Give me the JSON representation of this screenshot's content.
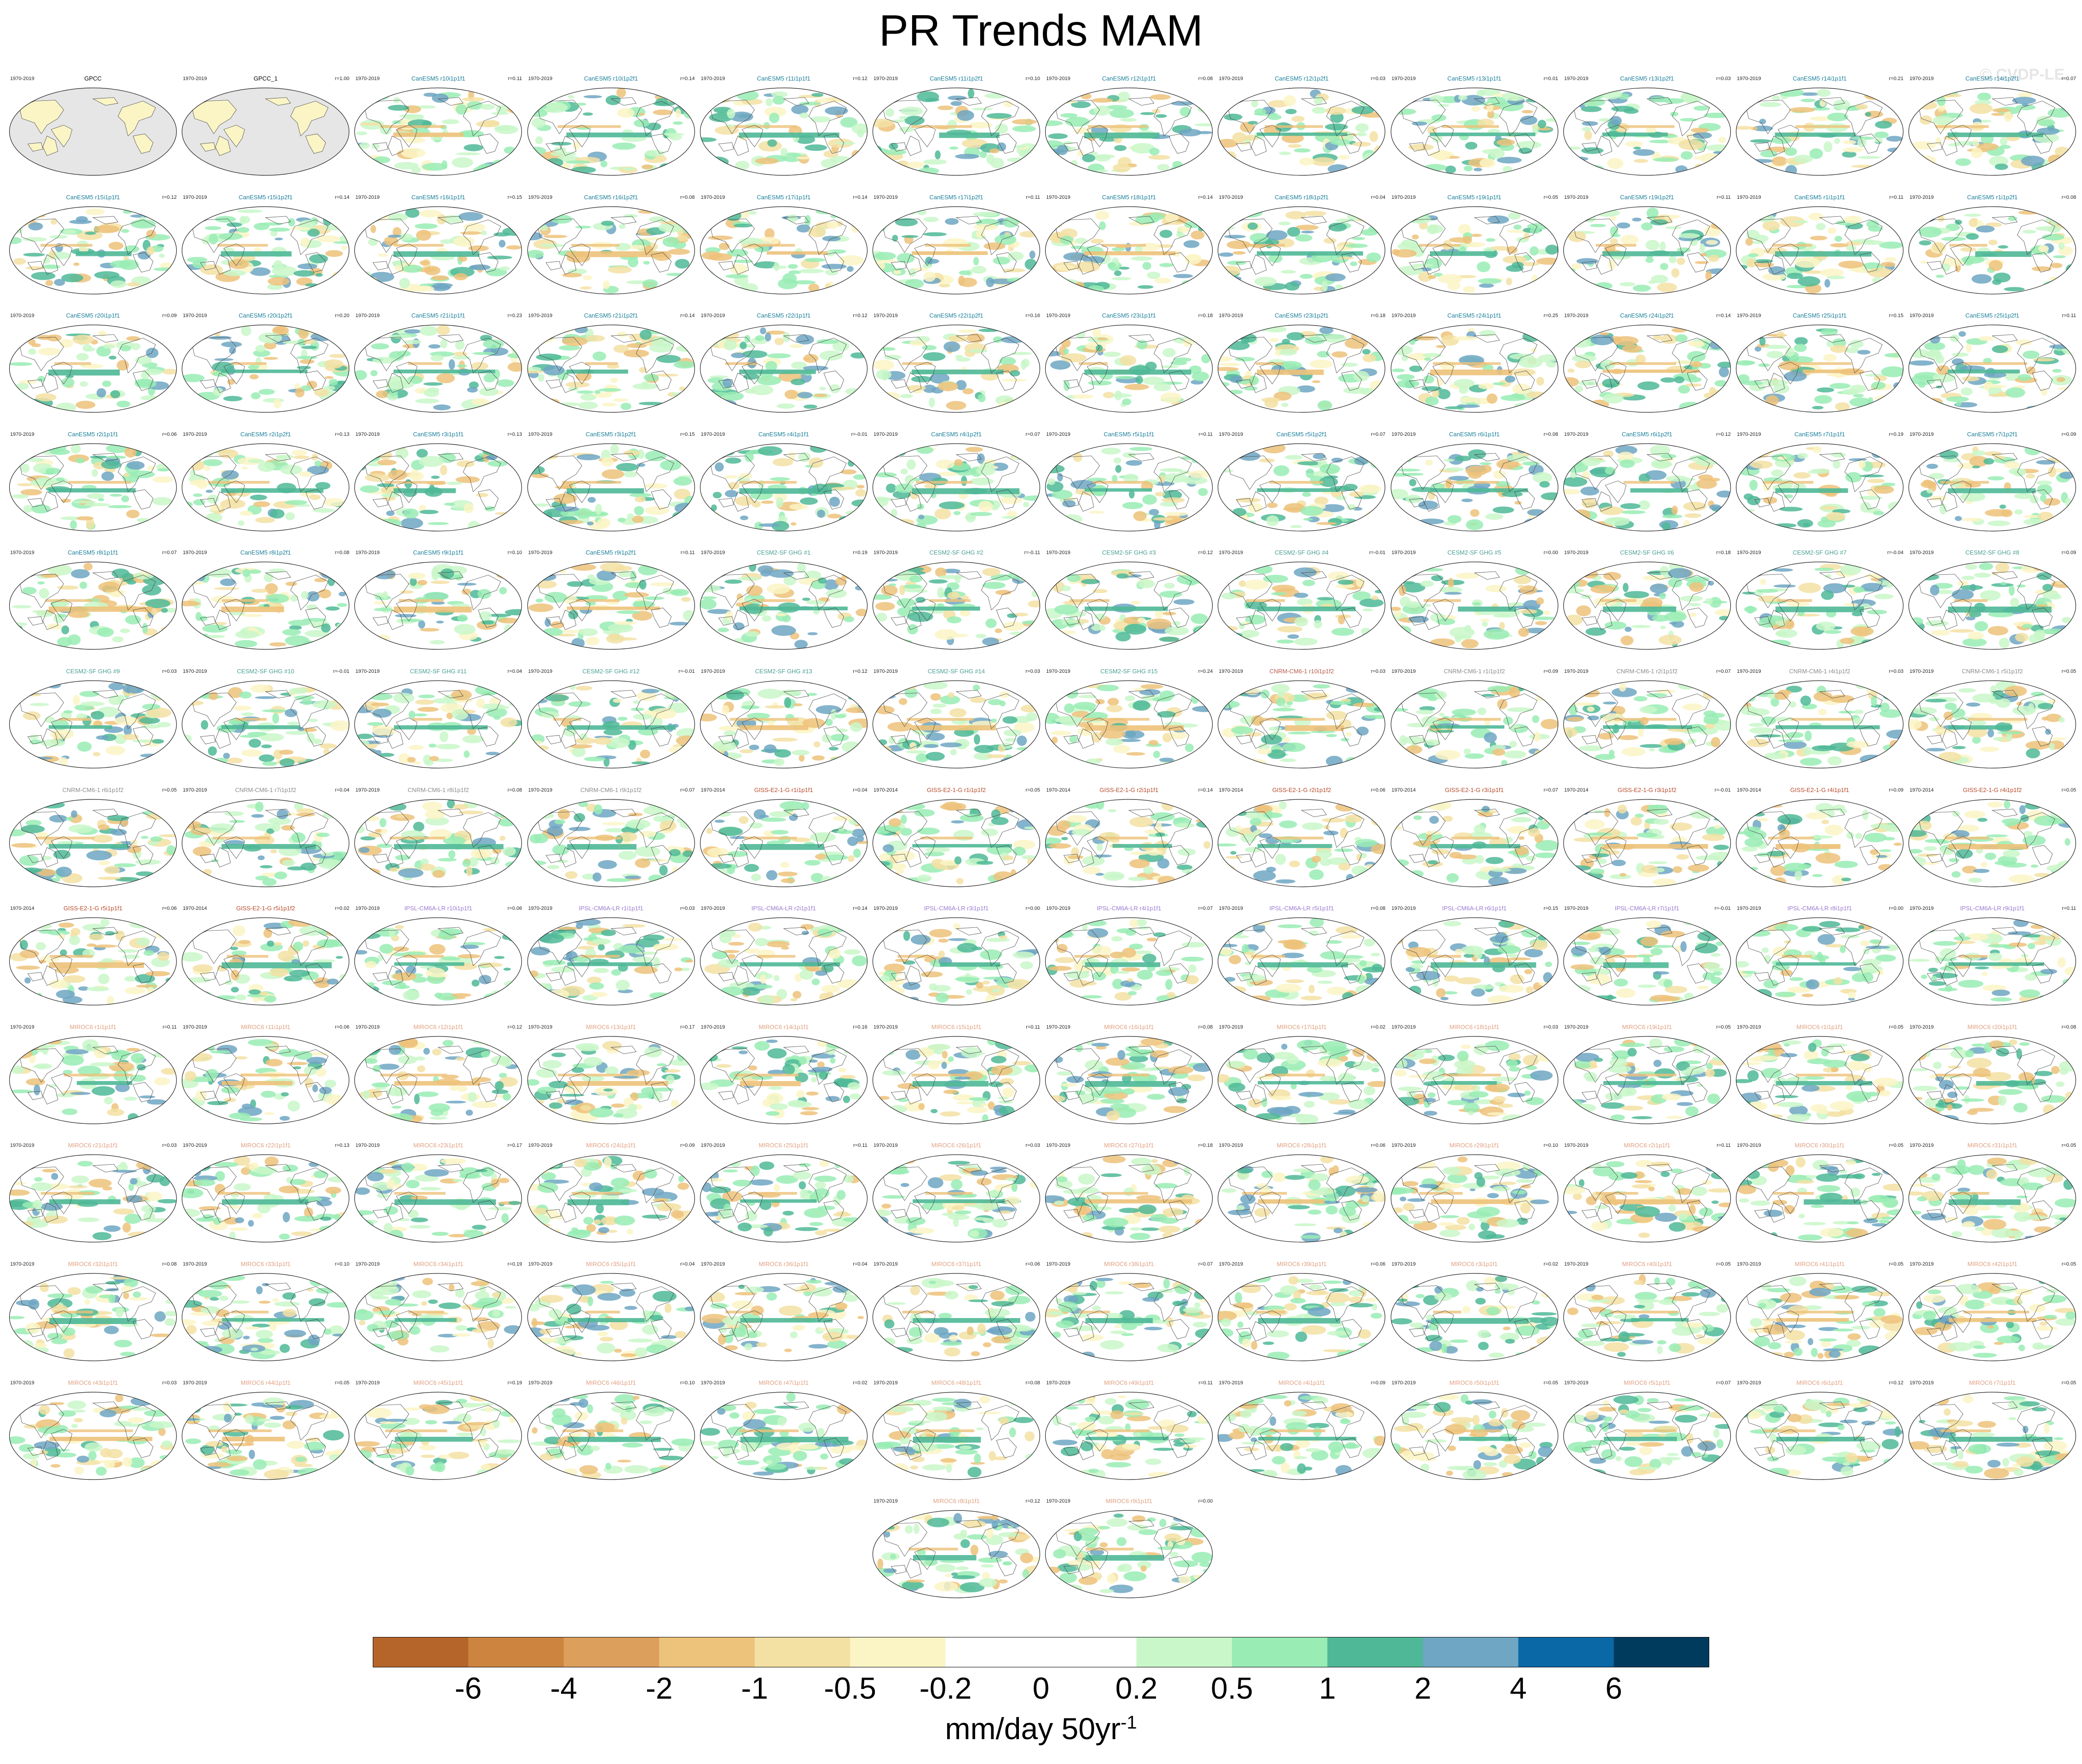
{
  "title": "PR Trends MAM",
  "watermark": "© CVDP-LE",
  "colorbar": {
    "colors": [
      "#b5652a",
      "#cc843f",
      "#dc9f5c",
      "#edc27a",
      "#f3e0a3",
      "#fbf5c6",
      "#ffffff",
      "#ffffff",
      "#c9f7c9",
      "#99ecb4",
      "#4fb897",
      "#6ea6c3",
      "#0a68a6",
      "#003b5e"
    ],
    "labels": [
      "-6",
      "-4",
      "-2",
      "-1",
      "-0.5",
      "-0.2",
      "0",
      "0.2",
      "0.5",
      "1",
      "2",
      "4",
      "6"
    ],
    "units": "mm/day 50yr",
    "units_exponent": "-1"
  },
  "panels": [
    {
      "period": "1970-2019",
      "title": "GPCC",
      "corr": "",
      "color": "#000000",
      "obs": true
    },
    {
      "period": "1970-2019",
      "title": "GPCC_1",
      "corr": "r=1.00",
      "color": "#000000",
      "obs": true
    },
    {
      "period": "1970-2019",
      "title": "CanESM5 r10i1p1f1",
      "corr": "r=0.11",
      "color": "#1a7f9a"
    },
    {
      "period": "1970-2019",
      "title": "CanESM5 r10i1p2f1",
      "corr": "r=0.14",
      "color": "#1a7f9a"
    },
    {
      "period": "1970-2019",
      "title": "CanESM5 r11i1p1f1",
      "corr": "r=0.12",
      "color": "#1a7f9a"
    },
    {
      "period": "1970-2019",
      "title": "CanESM5 r11i1p2f1",
      "corr": "r=0.10",
      "color": "#1a7f9a"
    },
    {
      "period": "1970-2019",
      "title": "CanESM5 r12i1p1f1",
      "corr": "r=0.08",
      "color": "#1a7f9a"
    },
    {
      "period": "1970-2019",
      "title": "CanESM5 r12i1p2f1",
      "corr": "r=0.03",
      "color": "#1a7f9a"
    },
    {
      "period": "1970-2019",
      "title": "CanESM5 r13i1p1f1",
      "corr": "r=0.01",
      "color": "#1a7f9a"
    },
    {
      "period": "1970-2019",
      "title": "CanESM5 r13i1p2f1",
      "corr": "r=0.03",
      "color": "#1a7f9a"
    },
    {
      "period": "1970-2019",
      "title": "CanESM5 r14i1p1f1",
      "corr": "r=0.21",
      "color": "#1a7f9a"
    },
    {
      "period": "1970-2019",
      "title": "CanESM5 r14i1p2f1",
      "corr": "r=0.07",
      "color": "#1a7f9a"
    },
    {
      "period": "",
      "title": "CanESM5 r15i1p1f1",
      "corr": "r=0.12",
      "color": "#1a7f9a"
    },
    {
      "period": "1970-2019",
      "title": "CanESM5 r15i1p2f1",
      "corr": "r=0.14",
      "color": "#1a7f9a"
    },
    {
      "period": "1970-2019",
      "title": "CanESM5 r16i1p1f1",
      "corr": "r=0.15",
      "color": "#1a7f9a"
    },
    {
      "period": "1970-2019",
      "title": "CanESM5 r16i1p2f1",
      "corr": "r=0.08",
      "color": "#1a7f9a"
    },
    {
      "period": "1970-2019",
      "title": "CanESM5 r17i1p1f1",
      "corr": "r=0.14",
      "color": "#1a7f9a"
    },
    {
      "period": "1970-2019",
      "title": "CanESM5 r17i1p2f1",
      "corr": "r=0.11",
      "color": "#1a7f9a"
    },
    {
      "period": "1970-2019",
      "title": "CanESM5 r18i1p1f1",
      "corr": "r=0.14",
      "color": "#1a7f9a"
    },
    {
      "period": "1970-2019",
      "title": "CanESM5 r18i1p2f1",
      "corr": "r=0.04",
      "color": "#1a7f9a"
    },
    {
      "period": "1970-2019",
      "title": "CanESM5 r19i1p1f1",
      "corr": "r=0.05",
      "color": "#1a7f9a"
    },
    {
      "period": "1970-2019",
      "title": "CanESM5 r19i1p2f1",
      "corr": "r=0.11",
      "color": "#1a7f9a"
    },
    {
      "period": "1970-2019",
      "title": "CanESM5 r1i1p1f1",
      "corr": "r=0.11",
      "color": "#1a7f9a"
    },
    {
      "period": "1970-2019",
      "title": "CanESM5 r1i1p2f1",
      "corr": "r=0.08",
      "color": "#1a7f9a"
    },
    {
      "period": "1970-2019",
      "title": "CanESM5 r20i1p1f1",
      "corr": "r=0.09",
      "color": "#1a7f9a"
    },
    {
      "period": "1970-2019",
      "title": "CanESM5 r20i1p2f1",
      "corr": "r=0.20",
      "color": "#1a7f9a"
    },
    {
      "period": "1970-2019",
      "title": "CanESM5 r21i1p1f1",
      "corr": "r=0.23",
      "color": "#1a7f9a"
    },
    {
      "period": "1970-2019",
      "title": "CanESM5 r21i1p2f1",
      "corr": "r=0.14",
      "color": "#1a7f9a"
    },
    {
      "period": "1970-2019",
      "title": "CanESM5 r22i1p1f1",
      "corr": "r=0.12",
      "color": "#1a7f9a"
    },
    {
      "period": "1970-2019",
      "title": "CanESM5 r22i1p2f1",
      "corr": "r=0.16",
      "color": "#1a7f9a"
    },
    {
      "period": "1970-2019",
      "title": "CanESM5 r23i1p1f1",
      "corr": "r=0.18",
      "color": "#1a7f9a"
    },
    {
      "period": "1970-2019",
      "title": "CanESM5 r23i1p2f1",
      "corr": "r=0.18",
      "color": "#1a7f9a"
    },
    {
      "period": "1970-2019",
      "title": "CanESM5 r24i1p1f1",
      "corr": "r=0.25",
      "color": "#1a7f9a"
    },
    {
      "period": "1970-2019",
      "title": "CanESM5 r24i1p2f1",
      "corr": "r=0.14",
      "color": "#1a7f9a"
    },
    {
      "period": "1970-2019",
      "title": "CanESM5 r25i1p1f1",
      "corr": "r=0.15",
      "color": "#1a7f9a"
    },
    {
      "period": "1970-2019",
      "title": "CanESM5 r25i1p2f1",
      "corr": "r=0.11",
      "color": "#1a7f9a"
    },
    {
      "period": "1970-2019",
      "title": "CanESM5 r2i1p1f1",
      "corr": "r=0.06",
      "color": "#1a7f9a"
    },
    {
      "period": "1970-2019",
      "title": "CanESM5 r2i1p2f1",
      "corr": "r=0.13",
      "color": "#1a7f9a"
    },
    {
      "period": "1970-2019",
      "title": "CanESM5 r3i1p1f1",
      "corr": "r=0.13",
      "color": "#1a7f9a"
    },
    {
      "period": "1970-2019",
      "title": "CanESM5 r3i1p2f1",
      "corr": "r=0.15",
      "color": "#1a7f9a"
    },
    {
      "period": "1970-2019",
      "title": "CanESM5 r4i1p1f1",
      "corr": "r=-0.01",
      "color": "#1a7f9a"
    },
    {
      "period": "1970-2019",
      "title": "CanESM5 r4i1p2f1",
      "corr": "r=0.07",
      "color": "#1a7f9a"
    },
    {
      "period": "1970-2019",
      "title": "CanESM5 r5i1p1f1",
      "corr": "r=0.11",
      "color": "#1a7f9a"
    },
    {
      "period": "1970-2019",
      "title": "CanESM5 r5i1p2f1",
      "corr": "r=0.07",
      "color": "#1a7f9a"
    },
    {
      "period": "1970-2019",
      "title": "CanESM5 r6i1p1f1",
      "corr": "r=0.08",
      "color": "#1a7f9a"
    },
    {
      "period": "1970-2019",
      "title": "CanESM5 r6i1p2f1",
      "corr": "r=0.12",
      "color": "#1a7f9a"
    },
    {
      "period": "1970-2019",
      "title": "CanESM5 r7i1p1f1",
      "corr": "r=0.19",
      "color": "#1a7f9a"
    },
    {
      "period": "1970-2019",
      "title": "CanESM5 r7i1p2f1",
      "corr": "r=0.09",
      "color": "#1a7f9a"
    },
    {
      "period": "1970-2019",
      "title": "CanESM5 r8i1p1f1",
      "corr": "r=0.07",
      "color": "#1a7f9a"
    },
    {
      "period": "1970-2019",
      "title": "CanESM5 r8i1p2f1",
      "corr": "r=0.08",
      "color": "#1a7f9a"
    },
    {
      "period": "1970-2019",
      "title": "CanESM5 r9i1p1f1",
      "corr": "r=0.10",
      "color": "#1a7f9a"
    },
    {
      "period": "1970-2019",
      "title": "CanESM5 r9i1p2f1",
      "corr": "r=0.11",
      "color": "#1a7f9a"
    },
    {
      "period": "1970-2019",
      "title": "CESM2-SF GHG #1",
      "corr": "r=0.19",
      "color": "#4a9e95"
    },
    {
      "period": "1970-2019",
      "title": "CESM2-SF GHG #2",
      "corr": "r=-0.11",
      "color": "#4a9e95"
    },
    {
      "period": "1970-2019",
      "title": "CESM2-SF GHG #3",
      "corr": "r=0.12",
      "color": "#4a9e95"
    },
    {
      "period": "1970-2019",
      "title": "CESM2-SF GHG #4",
      "corr": "r=-0.01",
      "color": "#4a9e95"
    },
    {
      "period": "1970-2019",
      "title": "CESM2-SF GHG #5",
      "corr": "r=0.00",
      "color": "#4a9e95"
    },
    {
      "period": "1970-2019",
      "title": "CESM2-SF GHG #6",
      "corr": "r=0.18",
      "color": "#4a9e95"
    },
    {
      "period": "1970-2019",
      "title": "CESM2-SF GHG #7",
      "corr": "r=-0.04",
      "color": "#4a9e95"
    },
    {
      "period": "1970-2019",
      "title": "CESM2-SF GHG #8",
      "corr": "r=0.09",
      "color": "#4a9e95"
    },
    {
      "period": "",
      "title": "CESM2-SF GHG #9",
      "corr": "r=0.03",
      "color": "#4a9e95"
    },
    {
      "period": "1970-2019",
      "title": "CESM2-SF GHG #10",
      "corr": "r=-0.01",
      "color": "#4a9e95"
    },
    {
      "period": "1970-2019",
      "title": "CESM2-SF GHG #11",
      "corr": "r=0.04",
      "color": "#4a9e95"
    },
    {
      "period": "1970-2019",
      "title": "CESM2-SF GHG #12",
      "corr": "r=-0.01",
      "color": "#4a9e95"
    },
    {
      "period": "1970-2019",
      "title": "CESM2-SF GHG #13",
      "corr": "r=0.12",
      "color": "#4a9e95"
    },
    {
      "period": "1970-2019",
      "title": "CESM2-SF GHG #14",
      "corr": "r=0.03",
      "color": "#4a9e95"
    },
    {
      "period": "1970-2019",
      "title": "CESM2-SF GHG #15",
      "corr": "r=0.24",
      "color": "#4a9e95"
    },
    {
      "period": "1970-2019",
      "title": "CNRM-CM6-1 r10i1p1f2",
      "corr": "r=0.03",
      "color": "#b85a4a"
    },
    {
      "period": "1970-2019",
      "title": "CNRM-CM6-1 r1i1p1f2",
      "corr": "r=0.09",
      "color": "#8c8c8c"
    },
    {
      "period": "1970-2019",
      "title": "CNRM-CM6-1 r2i1p1f2",
      "corr": "r=0.07",
      "color": "#8c8c8c"
    },
    {
      "period": "1970-2019",
      "title": "CNRM-CM6-1 r4i1p1f2",
      "corr": "r=0.03",
      "color": "#8c8c8c"
    },
    {
      "period": "1970-2019",
      "title": "CNRM-CM6-1 r5i1p1f2",
      "corr": "r=0.05",
      "color": "#8c8c8c"
    },
    {
      "period": "",
      "title": "CNRM-CM6-1 r6i1p1f2",
      "corr": "r=0.05",
      "color": "#8c8c8c"
    },
    {
      "period": "1970-2019",
      "title": "CNRM-CM6-1 r7i1p1f2",
      "corr": "r=0.04",
      "color": "#8c8c8c"
    },
    {
      "period": "1970-2019",
      "title": "CNRM-CM6-1 r8i1p1f2",
      "corr": "r=0.08",
      "color": "#8c8c8c"
    },
    {
      "period": "1970-2019",
      "title": "CNRM-CM6-1 r9i1p1f2",
      "corr": "r=0.07",
      "color": "#8c8c8c"
    },
    {
      "period": "1970-2014",
      "title": "GISS-E2-1-G r1i1p1f1",
      "corr": "r=0.04",
      "color": "#b84a2a"
    },
    {
      "period": "1970-2014",
      "title": "GISS-E2-1-G r1i1p1f2",
      "corr": "r=0.05",
      "color": "#b84a2a"
    },
    {
      "period": "1970-2014",
      "title": "GISS-E2-1-G r2i1p1f1",
      "corr": "r=0.14",
      "color": "#b84a2a"
    },
    {
      "period": "1970-2014",
      "title": "GISS-E2-1-G r2i1p1f2",
      "corr": "r=0.06",
      "color": "#b84a2a"
    },
    {
      "period": "1970-2014",
      "title": "GISS-E2-1-G r3i1p1f1",
      "corr": "r=0.07",
      "color": "#b84a2a"
    },
    {
      "period": "1970-2014",
      "title": "GISS-E2-1-G r3i1p1f2",
      "corr": "r=-0.01",
      "color": "#b84a2a"
    },
    {
      "period": "1970-2014",
      "title": "GISS-E2-1-G r4i1p1f1",
      "corr": "r=0.09",
      "color": "#b84a2a"
    },
    {
      "period": "1970-2014",
      "title": "GISS-E2-1-G r4i1p1f2",
      "corr": "r=0.05",
      "color": "#b84a2a"
    },
    {
      "period": "1970-2014",
      "title": "GISS-E2-1-G r5i1p1f1",
      "corr": "r=0.06",
      "color": "#b84a2a"
    },
    {
      "period": "1970-2014",
      "title": "GISS-E2-1-G r5i1p1f2",
      "corr": "r=0.02",
      "color": "#b84a2a"
    },
    {
      "period": "1970-2019",
      "title": "IPSL-CM6A-LR r10i1p1f1",
      "corr": "r=0.06",
      "color": "#9a7ad0"
    },
    {
      "period": "1970-2019",
      "title": "IPSL-CM6A-LR r1i1p1f1",
      "corr": "r=0.03",
      "color": "#9a7ad0"
    },
    {
      "period": "1970-2019",
      "title": "IPSL-CM6A-LR r2i1p1f1",
      "corr": "r=0.14",
      "color": "#9a7ad0"
    },
    {
      "period": "1970-2019",
      "title": "IPSL-CM6A-LR r3i1p1f1",
      "corr": "r=0.00",
      "color": "#9a7ad0"
    },
    {
      "period": "1970-2019",
      "title": "IPSL-CM6A-LR r4i1p1f1",
      "corr": "r=0.07",
      "color": "#9a7ad0"
    },
    {
      "period": "1970-2019",
      "title": "IPSL-CM6A-LR r5i1p1f1",
      "corr": "r=0.08",
      "color": "#9a7ad0"
    },
    {
      "period": "1970-2019",
      "title": "IPSL-CM6A-LR r6i1p1f1",
      "corr": "r=0.15",
      "color": "#9a7ad0"
    },
    {
      "period": "1970-2019",
      "title": "IPSL-CM6A-LR r7i1p1f1",
      "corr": "r=-0.01",
      "color": "#9a7ad0"
    },
    {
      "period": "1970-2019",
      "title": "IPSL-CM6A-LR r8i1p1f1",
      "corr": "r=0.00",
      "color": "#9a7ad0"
    },
    {
      "period": "1970-2019",
      "title": "IPSL-CM6A-LR r9i1p1f1",
      "corr": "r=0.11",
      "color": "#9a7ad0"
    },
    {
      "period": "1970-2019",
      "title": "MIROC6 r1i1p1f1",
      "corr": "r=0.11",
      "color": "#e0a080"
    },
    {
      "period": "1970-2019",
      "title": "MIROC6 r11i1p1f1",
      "corr": "r=0.06",
      "color": "#e0a080"
    },
    {
      "period": "1970-2019",
      "title": "MIROC6 r12i1p1f1",
      "corr": "r=0.12",
      "color": "#e0a080"
    },
    {
      "period": "1970-2019",
      "title": "MIROC6 r13i1p1f1",
      "corr": "r=0.17",
      "color": "#e0a080"
    },
    {
      "period": "1970-2019",
      "title": "MIROC6 r14i1p1f1",
      "corr": "r=0.16",
      "color": "#e0a080"
    },
    {
      "period": "1970-2019",
      "title": "MIROC6 r15i1p1f1",
      "corr": "r=0.11",
      "color": "#e0a080"
    },
    {
      "period": "1970-2019",
      "title": "MIROC6 r16i1p1f1",
      "corr": "r=0.08",
      "color": "#e0a080"
    },
    {
      "period": "1970-2019",
      "title": "MIROC6 r17i1p1f1",
      "corr": "r=0.02",
      "color": "#e0a080"
    },
    {
      "period": "1970-2019",
      "title": "MIROC6 r18i1p1f1",
      "corr": "r=0.03",
      "color": "#e0a080"
    },
    {
      "period": "1970-2019",
      "title": "MIROC6 r19i1p1f1",
      "corr": "r=0.05",
      "color": "#e0a080"
    },
    {
      "period": "1970-2019",
      "title": "MIROC6 r1i1p1f1",
      "corr": "r=0.05",
      "color": "#e0a080"
    },
    {
      "period": "1970-2019",
      "title": "MIROC6 r20i1p1f1",
      "corr": "r=0.08",
      "color": "#e0a080"
    },
    {
      "period": "1970-2019",
      "title": "MIROC6 r21i1p1f1",
      "corr": "r=0.03",
      "color": "#e0a080"
    },
    {
      "period": "1970-2019",
      "title": "MIROC6 r22i1p1f1",
      "corr": "r=0.13",
      "color": "#e0a080"
    },
    {
      "period": "1970-2019",
      "title": "MIROC6 r23i1p1f1",
      "corr": "r=0.17",
      "color": "#e0a080"
    },
    {
      "period": "1970-2019",
      "title": "MIROC6 r24i1p1f1",
      "corr": "r=0.09",
      "color": "#e0a080"
    },
    {
      "period": "1970-2019",
      "title": "MIROC6 r25i1p1f1",
      "corr": "r=0.11",
      "color": "#e0a080"
    },
    {
      "period": "1970-2019",
      "title": "MIROC6 r26i1p1f1",
      "corr": "r=0.03",
      "color": "#e0a080"
    },
    {
      "period": "1970-2019",
      "title": "MIROC6 r27i1p1f1",
      "corr": "r=0.18",
      "color": "#e0a080"
    },
    {
      "period": "1970-2019",
      "title": "MIROC6 r28i1p1f1",
      "corr": "r=0.06",
      "color": "#e0a080"
    },
    {
      "period": "1970-2019",
      "title": "MIROC6 r29i1p1f1",
      "corr": "r=0.10",
      "color": "#e0a080"
    },
    {
      "period": "1970-2019",
      "title": "MIROC6 r2i1p1f1",
      "corr": "r=0.11",
      "color": "#e0a080"
    },
    {
      "period": "1970-2019",
      "title": "MIROC6 r30i1p1f1",
      "corr": "r=0.05",
      "color": "#e0a080"
    },
    {
      "period": "1970-2019",
      "title": "MIROC6 r31i1p1f1",
      "corr": "r=0.05",
      "color": "#e0a080"
    },
    {
      "period": "1970-2019",
      "title": "MIROC6 r32i1p1f1",
      "corr": "r=0.08",
      "color": "#e0a080"
    },
    {
      "period": "1970-2019",
      "title": "MIROC6 r33i1p1f1",
      "corr": "r=0.10",
      "color": "#e0a080"
    },
    {
      "period": "1970-2019",
      "title": "MIROC6 r34i1p1f1",
      "corr": "r=0.19",
      "color": "#e0a080"
    },
    {
      "period": "1970-2019",
      "title": "MIROC6 r35i1p1f1",
      "corr": "r=0.04",
      "color": "#e0a080"
    },
    {
      "period": "1970-2019",
      "title": "MIROC6 r36i1p1f1",
      "corr": "r=0.04",
      "color": "#e0a080"
    },
    {
      "period": "1970-2019",
      "title": "MIROC6 r37i1p1f1",
      "corr": "r=0.06",
      "color": "#e0a080"
    },
    {
      "period": "1970-2019",
      "title": "MIROC6 r38i1p1f1",
      "corr": "r=0.07",
      "color": "#e0a080"
    },
    {
      "period": "1970-2019",
      "title": "MIROC6 r39i1p1f1",
      "corr": "r=0.06",
      "color": "#e0a080"
    },
    {
      "period": "1970-2019",
      "title": "MIROC6 r3i1p1f1",
      "corr": "r=0.02",
      "color": "#e0a080"
    },
    {
      "period": "1970-2019",
      "title": "MIROC6 r40i1p1f1",
      "corr": "r=0.05",
      "color": "#e0a080"
    },
    {
      "period": "1970-2019",
      "title": "MIROC6 r41i1p1f1",
      "corr": "r=0.05",
      "color": "#e0a080"
    },
    {
      "period": "1970-2019",
      "title": "MIROC6 r42i1p1f1",
      "corr": "r=0.05",
      "color": "#e0a080"
    },
    {
      "period": "1970-2019",
      "title": "MIROC6 r43i1p1f1",
      "corr": "r=0.03",
      "color": "#e0a080"
    },
    {
      "period": "1970-2019",
      "title": "MIROC6 r44i1p1f1",
      "corr": "r=0.05",
      "color": "#e0a080"
    },
    {
      "period": "1970-2019",
      "title": "MIROC6 r45i1p1f1",
      "corr": "r=0.19",
      "color": "#e0a080"
    },
    {
      "period": "1970-2019",
      "title": "MIROC6 r46i1p1f1",
      "corr": "r=0.10",
      "color": "#e0a080"
    },
    {
      "period": "1970-2019",
      "title": "MIROC6 r47i1p1f1",
      "corr": "r=0.02",
      "color": "#e0a080"
    },
    {
      "period": "1970-2019",
      "title": "MIROC6 r48i1p1f1",
      "corr": "r=0.08",
      "color": "#e0a080"
    },
    {
      "period": "1970-2019",
      "title": "MIROC6 r49i1p1f1",
      "corr": "r=0.11",
      "color": "#e0a080"
    },
    {
      "period": "1970-2019",
      "title": "MIROC6 r4i1p1f1",
      "corr": "r=0.09",
      "color": "#e0a080"
    },
    {
      "period": "1970-2019",
      "title": "MIROC6 r50i1p1f1",
      "corr": "r=0.05",
      "color": "#e0a080"
    },
    {
      "period": "1970-2019",
      "title": "MIROC6 r5i1p1f1",
      "corr": "r=0.07",
      "color": "#e0a080"
    },
    {
      "period": "1970-2019",
      "title": "MIROC6 r6i1p1f1",
      "corr": "r=0.12",
      "color": "#e0a080"
    },
    {
      "period": "1970-2019",
      "title": "MIROC6 r7i1p1f1",
      "corr": "r=0.05",
      "color": "#e0a080"
    },
    {
      "period": "1970-2019",
      "title": "MIROC6 r8i1p1f1",
      "corr": "r=0.12",
      "color": "#e0a080"
    },
    {
      "period": "1970-2019",
      "title": "MIROC6 r9i1p1f1",
      "corr": "r=0.00",
      "color": "#e0a080"
    }
  ],
  "chart_data": {
    "type": "heatmap",
    "title": "PR Trends MAM",
    "map_projection": "robinson, pacific-centred",
    "panel_layout": "12 columns x 13 rows, last row 2 centred panels",
    "colorbar_levels": [
      -6,
      -4,
      -2,
      -1,
      -0.5,
      -0.2,
      0,
      0.2,
      0.5,
      1,
      2,
      4,
      6
    ],
    "colorbar_units": "mm/day 50yr-1",
    "observations": [
      "GPCC",
      "GPCC_1"
    ]
  }
}
